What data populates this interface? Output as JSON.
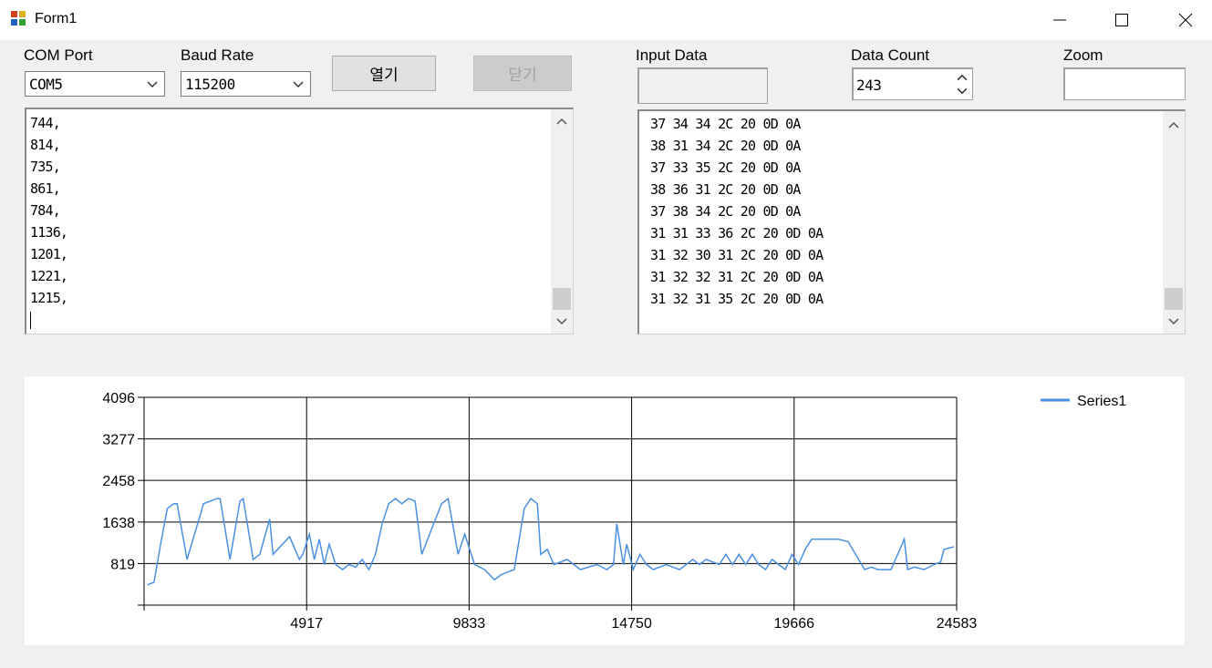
{
  "window": {
    "title": "Form1"
  },
  "com_port": {
    "label": "COM Port",
    "value": "COM5"
  },
  "baud_rate": {
    "label": "Baud Rate",
    "value": "115200"
  },
  "buttons": {
    "open": "열기",
    "close": "닫기"
  },
  "input_data": {
    "label": "Input Data",
    "value": ""
  },
  "data_count": {
    "label": "Data Count",
    "value": "243"
  },
  "zoom": {
    "label": "Zoom",
    "value": ""
  },
  "received_lines": [
    "744,",
    "814,",
    "735,",
    "861,",
    "784,",
    "1136,",
    "1201,",
    "1221,",
    "1215,"
  ],
  "hex_lines": [
    "37 34 34 2C 20 0D 0A",
    "38 31 34 2C 20 0D 0A",
    "37 33 35 2C 20 0D 0A",
    "38 36 31 2C 20 0D 0A",
    "37 38 34 2C 20 0D 0A",
    "31 31 33 36 2C 20 0D 0A",
    "31 32 30 31 2C 20 0D 0A",
    "31 32 32 31 2C 20 0D 0A",
    "31 32 31 35 2C 20 0D 0A"
  ],
  "colors": {
    "series": "#4a90e2",
    "window_bg": "#f0f0f0"
  },
  "chart_data": {
    "type": "line",
    "xlim": [
      0,
      24583
    ],
    "ylim": [
      0,
      4096
    ],
    "x_ticks": [
      4917,
      9833,
      14750,
      19666,
      24583
    ],
    "x_tick_labels": [
      "4917",
      "9833",
      "14750",
      "19666",
      "24583"
    ],
    "y_ticks": [
      819,
      1638,
      2458,
      3277,
      4096
    ],
    "y_tick_labels": [
      "819",
      "1638",
      "2458",
      "3277",
      "4096"
    ],
    "grid": true,
    "legend_position": "top-right",
    "series": [
      {
        "name": "Series1",
        "x": [
          100,
          300,
          500,
          700,
          900,
          1000,
          1300,
          1800,
          2000,
          2200,
          2300,
          2600,
          2900,
          3000,
          3300,
          3500,
          3800,
          3900,
          4400,
          4700,
          4800,
          5000,
          5150,
          5300,
          5450,
          5600,
          5800,
          6000,
          6200,
          6400,
          6600,
          6800,
          7000,
          7200,
          7400,
          7600,
          7800,
          8000,
          8200,
          8400,
          8700,
          9000,
          9200,
          9500,
          9700,
          10000,
          10300,
          10600,
          10800,
          11200,
          11500,
          11700,
          11900,
          12000,
          12200,
          12400,
          12800,
          13200,
          13700,
          14000,
          14200,
          14300,
          14500,
          14600,
          14800,
          15000,
          15200,
          15400,
          15800,
          16000,
          16200,
          16600,
          16800,
          17000,
          17400,
          17600,
          17800,
          18000,
          18200,
          18400,
          18600,
          18800,
          19000,
          19200,
          19400,
          19600,
          19800,
          20000,
          20200,
          21000,
          21300,
          21800,
          22000,
          22200,
          22600,
          23000,
          23100,
          23300,
          23600,
          23900,
          24100,
          24200,
          24500
        ],
        "y": [
          400,
          450,
          1200,
          1900,
          2000,
          2000,
          900,
          2000,
          2050,
          2100,
          2100,
          900,
          2050,
          2100,
          900,
          1000,
          1700,
          1000,
          1350,
          900,
          1000,
          1400,
          900,
          1300,
          800,
          1200,
          800,
          700,
          800,
          750,
          900,
          700,
          1000,
          1600,
          2000,
          2100,
          2000,
          2100,
          2050,
          1000,
          1500,
          2000,
          2100,
          1000,
          1400,
          800,
          700,
          500,
          600,
          700,
          1900,
          2100,
          2000,
          1000,
          1100,
          800,
          900,
          700,
          800,
          700,
          800,
          1600,
          800,
          1200,
          700,
          1000,
          800,
          700,
          800,
          750,
          700,
          900,
          800,
          900,
          800,
          1000,
          800,
          1000,
          800,
          1000,
          800,
          700,
          900,
          800,
          700,
          1000,
          800,
          1100,
          1300,
          1300,
          1250,
          700,
          750,
          700,
          700,
          1300,
          700,
          750,
          700,
          800,
          850,
          1100,
          1150
        ]
      }
    ]
  }
}
